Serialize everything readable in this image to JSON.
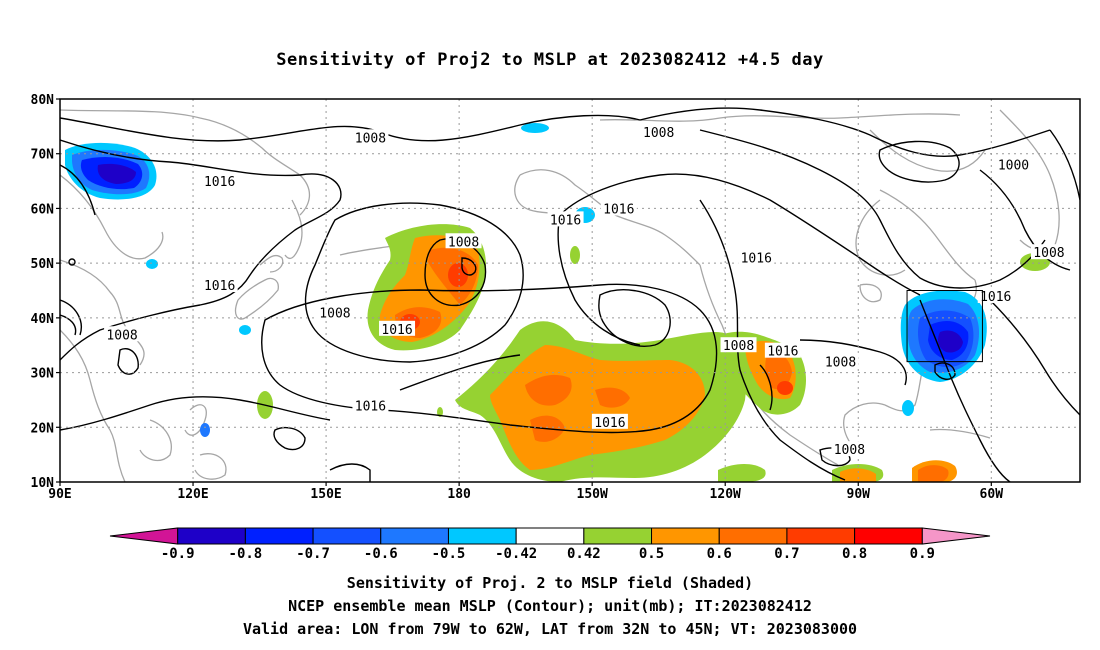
{
  "title": "Sensitivity of Proj2 to MSLP at 2023082412 +4.5 day",
  "map": {
    "lon_labels": [
      "90E",
      "120E",
      "150E",
      "180",
      "150W",
      "120W",
      "90W",
      "60W"
    ],
    "lat_labels": [
      "80N",
      "70N",
      "60N",
      "50N",
      "40N",
      "30N",
      "20N",
      "10N"
    ],
    "lon_values": [
      90,
      120,
      150,
      180,
      210,
      240,
      270,
      300
    ],
    "lat_values": [
      80,
      70,
      60,
      50,
      40,
      30,
      20,
      10
    ],
    "lon_range": [
      90,
      320
    ],
    "lat_range": [
      10,
      80
    ],
    "gridlines": "dotted",
    "contour_labels": [
      {
        "text": "1008",
        "lon": 160,
        "lat": 73
      },
      {
        "text": "1008",
        "lon": 225,
        "lat": 74
      },
      {
        "text": "1000",
        "lon": 305,
        "lat": 68
      },
      {
        "text": "1016",
        "lon": 126,
        "lat": 65
      },
      {
        "text": "1016",
        "lon": 216,
        "lat": 60
      },
      {
        "text": "1016",
        "lon": 204,
        "lat": 58
      },
      {
        "text": "1008",
        "lon": 181,
        "lat": 54
      },
      {
        "text": "1016",
        "lon": 247,
        "lat": 51
      },
      {
        "text": "1008",
        "lon": 313,
        "lat": 52
      },
      {
        "text": "1016",
        "lon": 126,
        "lat": 46
      },
      {
        "text": "1016",
        "lon": 301,
        "lat": 44
      },
      {
        "text": "1008",
        "lon": 152,
        "lat": 41
      },
      {
        "text": "1016",
        "lon": 166,
        "lat": 38
      },
      {
        "text": "1008",
        "lon": 104,
        "lat": 37
      },
      {
        "text": "1008",
        "lon": 243,
        "lat": 35
      },
      {
        "text": "1016",
        "lon": 253,
        "lat": 34
      },
      {
        "text": "1008",
        "lon": 266,
        "lat": 32
      },
      {
        "text": "1016",
        "lon": 160,
        "lat": 24
      },
      {
        "text": "1016",
        "lon": 214,
        "lat": 21
      },
      {
        "text": "1008",
        "lon": 268,
        "lat": 16
      }
    ],
    "valid_box": {
      "lon_min": 281,
      "lon_max": 298,
      "lat_min": 32,
      "lat_max": 45
    }
  },
  "colorbar": {
    "colors": [
      "#d21496",
      "#1e00c8",
      "#0020ff",
      "#1450ff",
      "#1e78ff",
      "#00c8ff",
      "#ffffff",
      "#96d232",
      "#ff9600",
      "#ff6e00",
      "#ff3c00",
      "#ff0000",
      "#f596c8"
    ],
    "labels": [
      "-0.9",
      "-0.8",
      "-0.7",
      "-0.6",
      "-0.5",
      "-0.42",
      "0.42",
      "0.5",
      "0.6",
      "0.7",
      "0.8",
      "0.9"
    ]
  },
  "captions": {
    "line1": "Sensitivity of Proj. 2 to MSLP field (Shaded)",
    "line2": "NCEP ensemble mean MSLP (Contour); unit(mb); IT:2023082412",
    "line3": "Valid area: LON from 79W to 62W, LAT from 32N to 45N; VT: 2023083000"
  }
}
